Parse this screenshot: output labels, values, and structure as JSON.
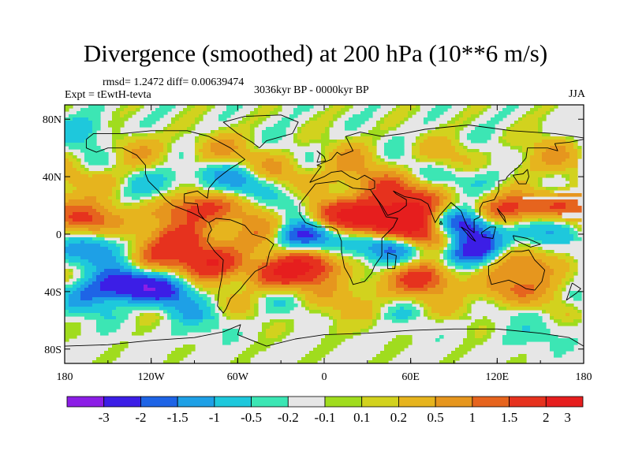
{
  "title": "Divergence (smoothed) at 200 hPa (10**6 m/s)",
  "stats": "rmsd= 1.2472 diff= 0.00639474",
  "experiment": "Expt = tEwtH-tevta",
  "period": "3036kyr BP - 0000kyr BP",
  "season": "JJA",
  "colors": {
    "background": "#ffffff",
    "land_line": "#000000",
    "neutral": "#e6e6e6",
    "scale": [
      "#8c1ee6",
      "#3c1ee6",
      "#1e64e6",
      "#1ea0e6",
      "#1ec8dc",
      "#3ce6b4",
      "#e6e6e6",
      "#a0dc1e",
      "#d2d21e",
      "#e6b41e",
      "#e6961e",
      "#e6641e",
      "#e6321e",
      "#e61e1e"
    ]
  },
  "colorbar_labels": [
    "-3",
    "-2",
    "-1.5",
    "-1",
    "-0.5",
    "-0.2",
    "-0.1",
    "0.1",
    "0.2",
    "0.5",
    "1",
    "1.5",
    "2",
    "3"
  ],
  "axes": {
    "lon_ticks": [
      {
        "value": -180,
        "label": "180"
      },
      {
        "value": -120,
        "label": "120W"
      },
      {
        "value": -60,
        "label": "60W"
      },
      {
        "value": 0,
        "label": "0"
      },
      {
        "value": 60,
        "label": "60E"
      },
      {
        "value": 120,
        "label": "120E"
      },
      {
        "value": 180,
        "label": "180"
      }
    ],
    "lat_ticks": [
      {
        "value": 80,
        "label": "80N"
      },
      {
        "value": 40,
        "label": "40N"
      },
      {
        "value": 0,
        "label": "0"
      },
      {
        "value": -40,
        "label": "40S"
      },
      {
        "value": -80,
        "label": "80S"
      }
    ]
  },
  "field_anomalies": [
    {
      "lon": -163,
      "lat": 10,
      "v": 2.2
    },
    {
      "lon": -100,
      "lat": 15,
      "v": 1.5
    },
    {
      "lon": -80,
      "lat": 20,
      "v": 1.2
    },
    {
      "lon": -50,
      "lat": 16,
      "v": 1.0
    },
    {
      "lon": -25,
      "lat": 4,
      "v": 1.3
    },
    {
      "lon": -160,
      "lat": -12,
      "v": -1.8
    },
    {
      "lon": -100,
      "lat": -4,
      "v": 2.2
    },
    {
      "lon": -78,
      "lat": -20,
      "v": 2.8
    },
    {
      "lon": -120,
      "lat": -16,
      "v": 1.5
    },
    {
      "lon": -43,
      "lat": -2,
      "v": 1.2
    },
    {
      "lon": -15,
      "lat": 0,
      "v": -3.5
    },
    {
      "lon": -22,
      "lat": 18,
      "v": -1.3
    },
    {
      "lon": -12,
      "lat": -22,
      "v": 3.0
    },
    {
      "lon": -35,
      "lat": -30,
      "v": 1.8
    },
    {
      "lon": -140,
      "lat": -35,
      "v": -2.6
    },
    {
      "lon": -110,
      "lat": -40,
      "v": -1.6
    },
    {
      "lon": -158,
      "lat": -42,
      "v": -1.0
    },
    {
      "lon": -55,
      "lat": 37,
      "v": -1.2
    },
    {
      "lon": -110,
      "lat": 38,
      "v": -1.0
    },
    {
      "lon": -150,
      "lat": 40,
      "v": 0.8
    },
    {
      "lon": -30,
      "lat": 45,
      "v": 0.9
    },
    {
      "lon": -75,
      "lat": 58,
      "v": 1.0
    },
    {
      "lon": -130,
      "lat": 60,
      "v": 0.6
    },
    {
      "lon": 5,
      "lat": 15,
      "v": 2.4
    },
    {
      "lon": 30,
      "lat": 10,
      "v": 2.4
    },
    {
      "lon": 55,
      "lat": 12,
      "v": 3.0
    },
    {
      "lon": 45,
      "lat": 30,
      "v": 1.6
    },
    {
      "lon": 72,
      "lat": 25,
      "v": 1.2
    },
    {
      "lon": 47,
      "lat": -8,
      "v": -2.6
    },
    {
      "lon": 62,
      "lat": 0,
      "v": 2.5
    },
    {
      "lon": 95,
      "lat": 6,
      "v": -3.0
    },
    {
      "lon": 85,
      "lat": -5,
      "v": 2.0
    },
    {
      "lon": 100,
      "lat": -10,
      "v": -3.2
    },
    {
      "lon": 125,
      "lat": 15,
      "v": 2.3
    },
    {
      "lon": 150,
      "lat": 5,
      "v": -1.6
    },
    {
      "lon": 160,
      "lat": 20,
      "v": 2.0
    },
    {
      "lon": 140,
      "lat": -20,
      "v": 1.6
    },
    {
      "lon": 70,
      "lat": -30,
      "v": 2.2
    },
    {
      "lon": 30,
      "lat": -40,
      "v": 1.0
    },
    {
      "lon": 120,
      "lat": -40,
      "v": 1.4
    },
    {
      "lon": 165,
      "lat": -35,
      "v": 0.8
    },
    {
      "lon": 110,
      "lat": 40,
      "v": -1.1
    },
    {
      "lon": 135,
      "lat": 45,
      "v": 1.0
    },
    {
      "lon": 80,
      "lat": 55,
      "v": 0.6
    },
    {
      "lon": 20,
      "lat": 55,
      "v": 0.5
    },
    {
      "lon": 10,
      "lat": 40,
      "v": 0.9
    },
    {
      "lon": 160,
      "lat": 60,
      "v": 0.7
    },
    {
      "lon": -170,
      "lat": 70,
      "v": -0.8
    },
    {
      "lon": 0,
      "lat": -62,
      "v": 0.4
    },
    {
      "lon": -90,
      "lat": -62,
      "v": -0.6
    },
    {
      "lon": 150,
      "lat": -70,
      "v": -0.6
    }
  ],
  "coastlines": [
    [
      [
        -165,
        66
      ],
      [
        -160,
        70
      ],
      [
        -140,
        70
      ],
      [
        -120,
        72
      ],
      [
        -95,
        72
      ],
      [
        -80,
        68
      ],
      [
        -65,
        60
      ],
      [
        -55,
        52
      ],
      [
        -66,
        45
      ],
      [
        -70,
        42
      ],
      [
        -75,
        38
      ],
      [
        -80,
        32
      ],
      [
        -81,
        25
      ],
      [
        -88,
        30
      ],
      [
        -97,
        28
      ],
      [
        -97,
        22
      ],
      [
        -88,
        21
      ],
      [
        -87,
        15
      ],
      [
        -83,
        10
      ],
      [
        -80,
        8
      ],
      [
        -86,
        12
      ],
      [
        -92,
        15
      ],
      [
        -105,
        20
      ],
      [
        -110,
        24
      ],
      [
        -115,
        30
      ],
      [
        -122,
        37
      ],
      [
        -124,
        42
      ],
      [
        -124,
        48
      ],
      [
        -130,
        55
      ],
      [
        -140,
        60
      ],
      [
        -150,
        60
      ],
      [
        -158,
        57
      ],
      [
        -165,
        60
      ],
      [
        -165,
        66
      ]
    ],
    [
      [
        -80,
        8
      ],
      [
        -75,
        11
      ],
      [
        -65,
        10
      ],
      [
        -55,
        6
      ],
      [
        -50,
        0
      ],
      [
        -40,
        -3
      ],
      [
        -35,
        -7
      ],
      [
        -38,
        -13
      ],
      [
        -40,
        -22
      ],
      [
        -48,
        -26
      ],
      [
        -55,
        -34
      ],
      [
        -58,
        -38
      ],
      [
        -65,
        -45
      ],
      [
        -68,
        -52
      ],
      [
        -70,
        -55
      ],
      [
        -74,
        -50
      ],
      [
        -73,
        -40
      ],
      [
        -71,
        -30
      ],
      [
        -70,
        -18
      ],
      [
        -76,
        -12
      ],
      [
        -81,
        -5
      ],
      [
        -80,
        0
      ],
      [
        -78,
        3
      ],
      [
        -80,
        8
      ]
    ],
    [
      [
        -45,
        60
      ],
      [
        -40,
        65
      ],
      [
        -22,
        70
      ],
      [
        -18,
        78
      ],
      [
        -30,
        83
      ],
      [
        -55,
        82
      ],
      [
        -70,
        78
      ],
      [
        -60,
        70
      ],
      [
        -50,
        64
      ],
      [
        -45,
        60
      ]
    ],
    [
      [
        -10,
        36
      ],
      [
        -5,
        43
      ],
      [
        -2,
        47
      ],
      [
        -5,
        48
      ],
      [
        5,
        52
      ],
      [
        9,
        57
      ],
      [
        12,
        55
      ],
      [
        20,
        58
      ],
      [
        18,
        62
      ],
      [
        15,
        68
      ],
      [
        25,
        71
      ],
      [
        40,
        68
      ],
      [
        55,
        70
      ],
      [
        70,
        73
      ],
      [
        100,
        76
      ],
      [
        130,
        72
      ],
      [
        160,
        70
      ],
      [
        180,
        67
      ]
    ],
    [
      [
        -10,
        36
      ],
      [
        0,
        40
      ],
      [
        5,
        43
      ],
      [
        12,
        44
      ],
      [
        18,
        40
      ],
      [
        23,
        38
      ],
      [
        28,
        41
      ],
      [
        35,
        37
      ],
      [
        35,
        32
      ],
      [
        32,
        31
      ]
    ],
    [
      [
        -17,
        21
      ],
      [
        -10,
        30
      ],
      [
        -6,
        35
      ],
      [
        10,
        37
      ],
      [
        20,
        32
      ],
      [
        32,
        31
      ],
      [
        34,
        28
      ],
      [
        38,
        22
      ],
      [
        43,
        12
      ],
      [
        51,
        11
      ],
      [
        48,
        5
      ],
      [
        40,
        -3
      ],
      [
        40,
        -15
      ],
      [
        35,
        -22
      ],
      [
        33,
        -27
      ],
      [
        28,
        -33
      ],
      [
        20,
        -35
      ],
      [
        18,
        -30
      ],
      [
        14,
        -23
      ],
      [
        12,
        -12
      ],
      [
        12,
        -5
      ],
      [
        9,
        3
      ],
      [
        5,
        5
      ],
      [
        -5,
        5
      ],
      [
        -13,
        8
      ],
      [
        -17,
        14
      ],
      [
        -17,
        21
      ]
    ],
    [
      [
        34,
        28
      ],
      [
        40,
        20
      ],
      [
        44,
        13
      ],
      [
        52,
        16
      ],
      [
        57,
        20
      ],
      [
        57,
        24
      ],
      [
        50,
        28
      ],
      [
        48,
        30
      ],
      [
        56,
        26
      ],
      [
        62,
        25
      ],
      [
        67,
        24
      ],
      [
        72,
        21
      ],
      [
        77,
        8
      ],
      [
        80,
        13
      ],
      [
        88,
        22
      ],
      [
        95,
        16
      ],
      [
        98,
        8
      ],
      [
        100,
        4
      ],
      [
        104,
        1
      ],
      [
        104,
        10
      ],
      [
        108,
        12
      ],
      [
        108,
        18
      ],
      [
        110,
        22
      ],
      [
        118,
        24
      ],
      [
        121,
        30
      ],
      [
        121,
        37
      ],
      [
        126,
        38
      ],
      [
        127,
        40
      ],
      [
        130,
        43
      ],
      [
        135,
        47
      ],
      [
        140,
        53
      ],
      [
        141,
        60
      ],
      [
        155,
        60
      ],
      [
        162,
        58
      ],
      [
        160,
        63
      ],
      [
        170,
        64
      ],
      [
        180,
        66
      ]
    ],
    [
      [
        131,
        41
      ],
      [
        135,
        35
      ],
      [
        140,
        35
      ],
      [
        142,
        40
      ],
      [
        141,
        45
      ],
      [
        138,
        42
      ],
      [
        131,
        41
      ]
    ],
    [
      [
        95,
        5
      ],
      [
        100,
        2
      ],
      [
        105,
        -5
      ],
      [
        102,
        -3
      ],
      [
        95,
        5
      ]
    ],
    [
      [
        109,
        1
      ],
      [
        115,
        5
      ],
      [
        119,
        5
      ],
      [
        117,
        -3
      ],
      [
        110,
        -2
      ],
      [
        109,
        1
      ]
    ],
    [
      [
        131,
        -1
      ],
      [
        141,
        -3
      ],
      [
        150,
        -7
      ],
      [
        143,
        -9
      ],
      [
        132,
        -4
      ],
      [
        131,
        -1
      ]
    ],
    [
      [
        114,
        -22
      ],
      [
        120,
        -20
      ],
      [
        130,
        -12
      ],
      [
        137,
        -12
      ],
      [
        142,
        -11
      ],
      [
        146,
        -18
      ],
      [
        153,
        -25
      ],
      [
        151,
        -33
      ],
      [
        146,
        -39
      ],
      [
        140,
        -38
      ],
      [
        135,
        -35
      ],
      [
        128,
        -32
      ],
      [
        116,
        -35
      ],
      [
        114,
        -28
      ],
      [
        114,
        -22
      ]
    ],
    [
      [
        172,
        -34
      ],
      [
        178,
        -38
      ],
      [
        175,
        -41
      ],
      [
        168,
        -46
      ],
      [
        172,
        -34
      ]
    ],
    [
      [
        -180,
        -78
      ],
      [
        -150,
        -77
      ],
      [
        -120,
        -74
      ],
      [
        -90,
        -72
      ],
      [
        -70,
        -68
      ],
      [
        -58,
        -63
      ],
      [
        -60,
        -70
      ],
      [
        -40,
        -78
      ],
      [
        -20,
        -73
      ],
      [
        0,
        -70
      ],
      [
        30,
        -69
      ],
      [
        60,
        -67
      ],
      [
        90,
        -66
      ],
      [
        120,
        -66
      ],
      [
        150,
        -69
      ],
      [
        170,
        -72
      ],
      [
        180,
        -78
      ]
    ],
    [
      [
        -5,
        50
      ],
      [
        -3,
        56
      ],
      [
        -5,
        58
      ],
      [
        0,
        54
      ],
      [
        1,
        51
      ],
      [
        -5,
        50
      ]
    ],
    [
      [
        44,
        -13
      ],
      [
        50,
        -15
      ],
      [
        49,
        -24
      ],
      [
        44,
        -24
      ],
      [
        44,
        -13
      ]
    ],
    [
      [
        80,
        7
      ],
      [
        82,
        7
      ],
      [
        81,
        9
      ],
      [
        80,
        7
      ]
    ],
    [
      [
        120,
        18
      ],
      [
        122,
        14
      ],
      [
        126,
        8
      ],
      [
        125,
        12
      ],
      [
        120,
        18
      ]
    ]
  ]
}
